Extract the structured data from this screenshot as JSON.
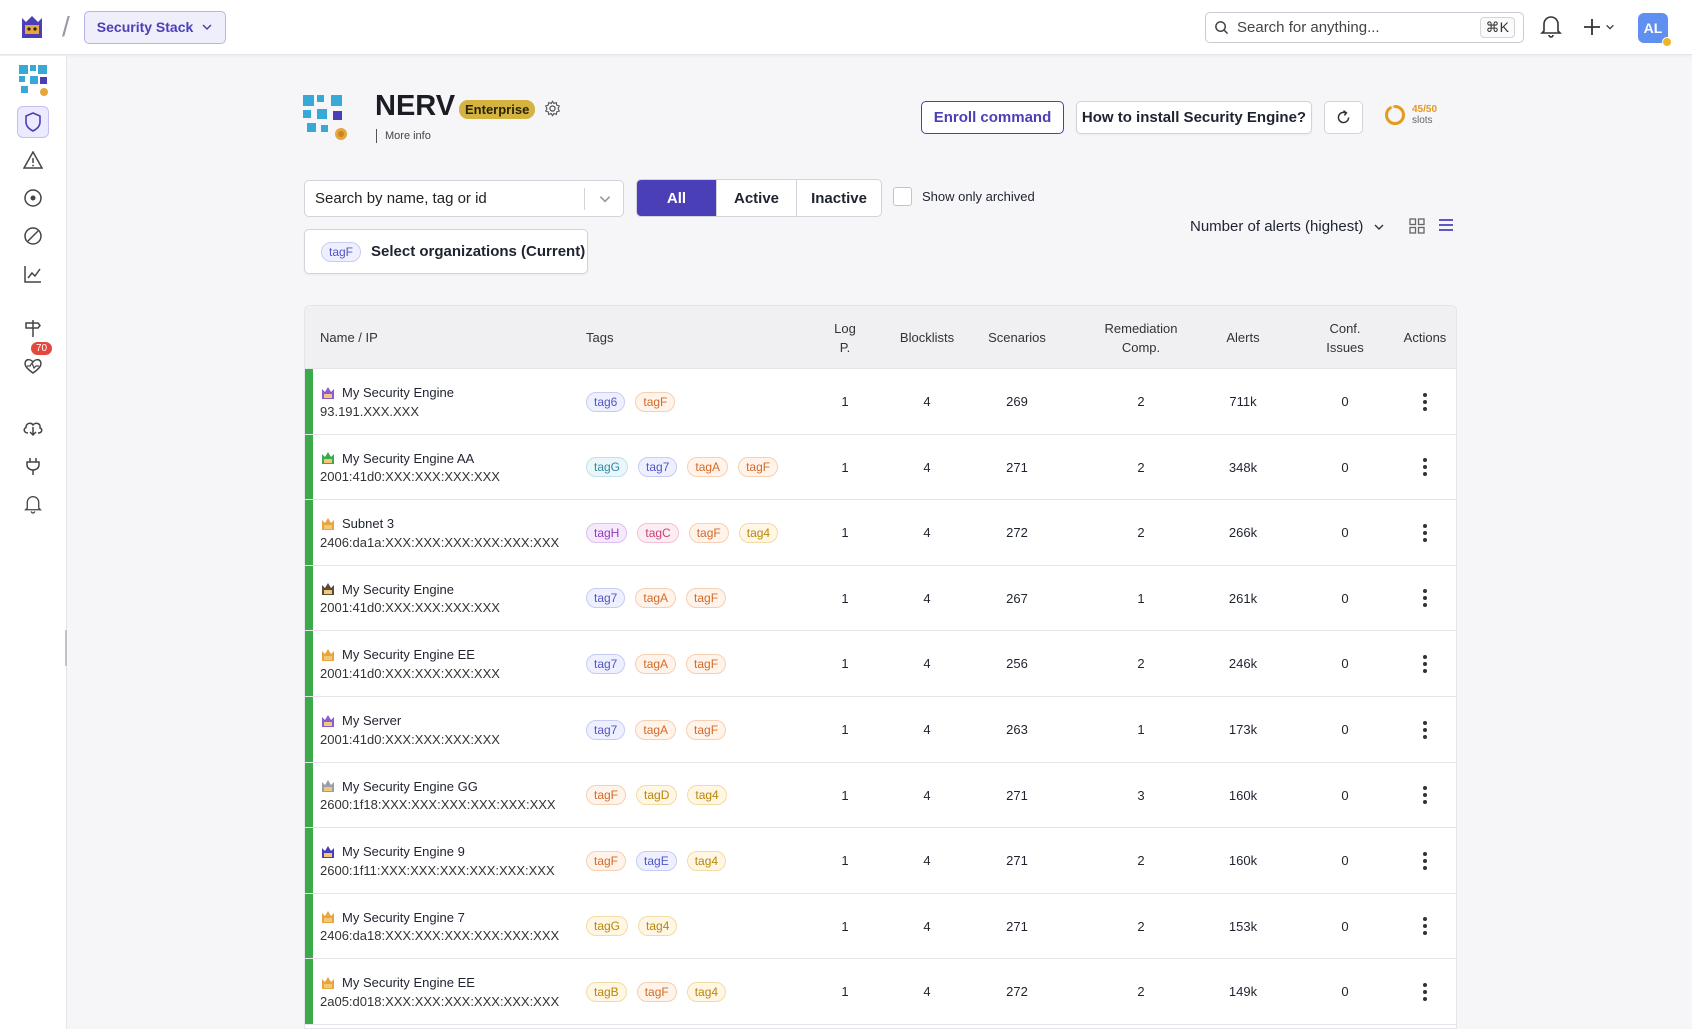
{
  "header": {
    "stack_label": "Security Stack",
    "search_placeholder": "Search for anything...",
    "search_shortcut": "⌘K",
    "avatar_initials": "AL"
  },
  "sidebar": {
    "items": [
      {
        "icon": "organization-icon"
      },
      {
        "icon": "shield-icon",
        "active": true
      },
      {
        "icon": "alert-triangle-icon"
      },
      {
        "icon": "target-icon"
      },
      {
        "icon": "blocked-icon"
      },
      {
        "icon": "chart-line-icon"
      },
      {
        "icon": "signpost-icon"
      },
      {
        "icon": "heart-pulse-icon",
        "badge": "70"
      },
      {
        "icon": "cloud-download-icon"
      },
      {
        "icon": "plug-icon"
      },
      {
        "icon": "bell-icon"
      }
    ]
  },
  "org": {
    "name": "NERV",
    "plan": "Enterprise",
    "more_info": "More info"
  },
  "actions": {
    "enroll": "Enroll command",
    "howto": "How to install Security Engine?",
    "slots_value": "45/50",
    "slots_label": "slots",
    "slots_fraction": 0.9
  },
  "filters": {
    "search_placeholder": "Search by name, tag or id",
    "segments": [
      "All",
      "Active",
      "Inactive"
    ],
    "selected_segment": "All",
    "archived_label": "Show only archived",
    "org_tag": "tagF",
    "org_select_label": "Select organizations (Current)",
    "sort_label": "Number of alerts (highest)"
  },
  "table": {
    "headers": {
      "name": "Name / IP",
      "tags": "Tags",
      "logp_1": "Log",
      "logp_2": "P.",
      "blocklists": "Blocklists",
      "scenarios": "Scenarios",
      "remediation_1": "Remediation",
      "remediation_2": "Comp.",
      "alerts": "Alerts",
      "conf_1": "Conf.",
      "conf_2": "Issues",
      "actions": "Actions"
    },
    "rows": [
      {
        "name": "My Security Engine",
        "ip": "93.191.XXX.XXX",
        "tags": [
          {
            "t": "tag6",
            "c": "blue"
          },
          {
            "t": "tagF",
            "c": "orange"
          }
        ],
        "logp": "1",
        "blocklists": "4",
        "scenarios": "269",
        "remediation": "2",
        "alerts": "711k",
        "conf": "0"
      },
      {
        "name": "My Security Engine AA",
        "ip": "2001:41d0:XXX:XXX:XXX:XXX",
        "tags": [
          {
            "t": "tagG",
            "c": "teal"
          },
          {
            "t": "tag7",
            "c": "blue"
          },
          {
            "t": "tagA",
            "c": "orange"
          },
          {
            "t": "tagF",
            "c": "orange"
          }
        ],
        "logp": "1",
        "blocklists": "4",
        "scenarios": "271",
        "remediation": "2",
        "alerts": "348k",
        "conf": "0"
      },
      {
        "name": "Subnet 3",
        "ip": "2406:da1a:XXX:XXX:XXX:XXX:XXX:XXX",
        "tags": [
          {
            "t": "tagH",
            "c": "purple"
          },
          {
            "t": "tagC",
            "c": "pink"
          },
          {
            "t": "tagF",
            "c": "orange"
          },
          {
            "t": "tag4",
            "c": "yellow"
          }
        ],
        "logp": "1",
        "blocklists": "4",
        "scenarios": "272",
        "remediation": "2",
        "alerts": "266k",
        "conf": "0"
      },
      {
        "name": "My Security Engine",
        "ip": "2001:41d0:XXX:XXX:XXX:XXX",
        "tags": [
          {
            "t": "tag7",
            "c": "blue"
          },
          {
            "t": "tagA",
            "c": "orange"
          },
          {
            "t": "tagF",
            "c": "orange"
          }
        ],
        "logp": "1",
        "blocklists": "4",
        "scenarios": "267",
        "remediation": "1",
        "alerts": "261k",
        "conf": "0"
      },
      {
        "name": "My Security Engine EE",
        "ip": "2001:41d0:XXX:XXX:XXX:XXX",
        "tags": [
          {
            "t": "tag7",
            "c": "blue"
          },
          {
            "t": "tagA",
            "c": "orange"
          },
          {
            "t": "tagF",
            "c": "orange"
          }
        ],
        "logp": "1",
        "blocklists": "4",
        "scenarios": "256",
        "remediation": "2",
        "alerts": "246k",
        "conf": "0"
      },
      {
        "name": "My Server",
        "ip": "2001:41d0:XXX:XXX:XXX:XXX",
        "tags": [
          {
            "t": "tag7",
            "c": "blue"
          },
          {
            "t": "tagA",
            "c": "orange"
          },
          {
            "t": "tagF",
            "c": "orange"
          }
        ],
        "logp": "1",
        "blocklists": "4",
        "scenarios": "263",
        "remediation": "1",
        "alerts": "173k",
        "conf": "0"
      },
      {
        "name": "My Security Engine GG",
        "ip": "2600:1f18:XXX:XXX:XXX:XXX:XXX:XXX",
        "tags": [
          {
            "t": "tagF",
            "c": "orange"
          },
          {
            "t": "tagD",
            "c": "yellow"
          },
          {
            "t": "tag4",
            "c": "yellow"
          }
        ],
        "logp": "1",
        "blocklists": "4",
        "scenarios": "271",
        "remediation": "3",
        "alerts": "160k",
        "conf": "0"
      },
      {
        "name": "My Security Engine 9",
        "ip": "2600:1f11:XXX:XXX:XXX:XXX:XXX:XXX",
        "tags": [
          {
            "t": "tagF",
            "c": "orange"
          },
          {
            "t": "tagE",
            "c": "blue"
          },
          {
            "t": "tag4",
            "c": "yellow"
          }
        ],
        "logp": "1",
        "blocklists": "4",
        "scenarios": "271",
        "remediation": "2",
        "alerts": "160k",
        "conf": "0"
      },
      {
        "name": "My Security Engine 7",
        "ip": "2406:da18:XXX:XXX:XXX:XXX:XXX:XXX",
        "tags": [
          {
            "t": "tagG",
            "c": "yellow"
          },
          {
            "t": "tag4",
            "c": "yellow"
          }
        ],
        "logp": "1",
        "blocklists": "4",
        "scenarios": "271",
        "remediation": "2",
        "alerts": "153k",
        "conf": "0"
      },
      {
        "name": "My Security Engine EE",
        "ip": "2a05:d018:XXX:XXX:XXX:XXX:XXX:XXX",
        "tags": [
          {
            "t": "tagB",
            "c": "yellow"
          },
          {
            "t": "tagF",
            "c": "orange"
          },
          {
            "t": "tag4",
            "c": "yellow"
          }
        ],
        "logp": "1",
        "blocklists": "4",
        "scenarios": "272",
        "remediation": "2",
        "alerts": "149k",
        "conf": "0"
      }
    ]
  }
}
